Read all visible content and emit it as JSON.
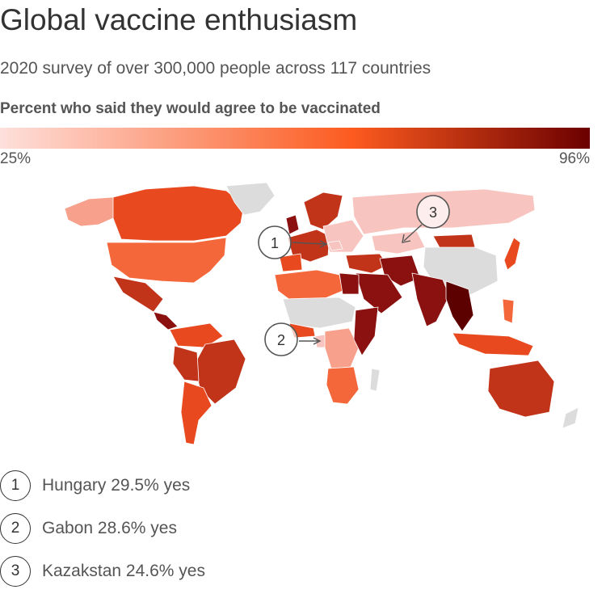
{
  "title": "Global vaccine enthusiasm",
  "subtitle": "2020 survey of over 300,000 people across 117 countries",
  "legend": {
    "title": "Percent who said they would agree to be vaccinated",
    "min_label": "25%",
    "max_label": "96%",
    "colors": [
      "#fde0dc",
      "#fc5a1e",
      "#6b0000"
    ]
  },
  "colors": {
    "no_data": "#dcdcdc",
    "low": "#f8c4bf",
    "mid_low": "#f7a08c",
    "mid": "#f4673a",
    "mid_high": "#e8491f",
    "high": "#c2341a",
    "very_high": "#8b1010",
    "darkest": "#5c0000"
  },
  "callouts": [
    {
      "number": "1",
      "text": "Hungary 29.5% yes"
    },
    {
      "number": "2",
      "text": "Gabon  28.6% yes"
    },
    {
      "number": "3",
      "text": "Kazakstan 24.6% yes"
    }
  ]
}
